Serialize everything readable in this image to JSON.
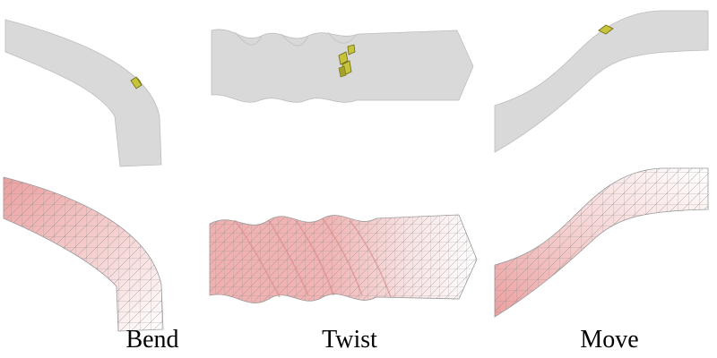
{
  "panels": [
    {
      "label": "Bend"
    },
    {
      "label": "Twist"
    },
    {
      "label": "Move"
    }
  ],
  "colors": {
    "background": "#ffffff",
    "surface_fill": "#d9d9d9",
    "surface_edge": "#bdbdbd",
    "marker_fill": "#c8c43a",
    "marker_edge": "#6b6a14",
    "mesh_line": "#8c8c8c",
    "mesh_tint": "#e8a6a6",
    "caption_text": "#000000"
  }
}
